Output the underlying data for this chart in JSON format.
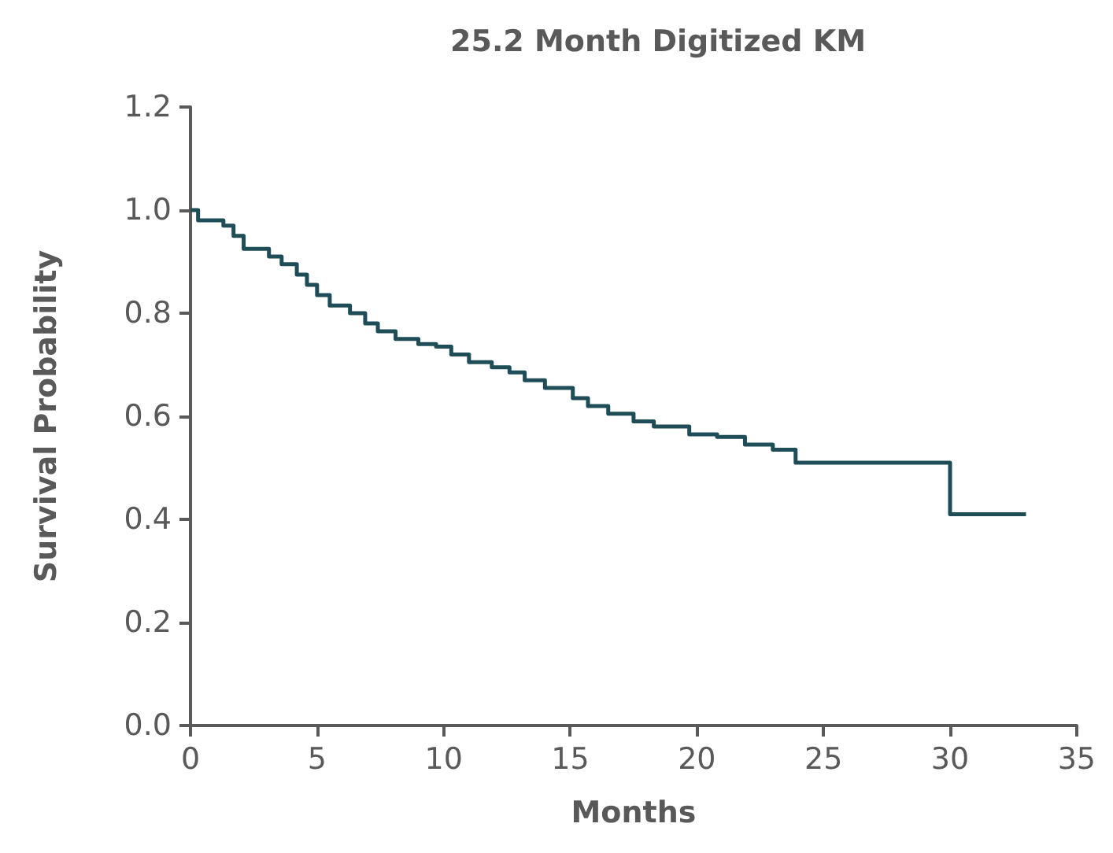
{
  "chart_data": {
    "type": "step",
    "title": "25.2 Month Digitized KM",
    "xlabel": "Months",
    "ylabel": "Survival Probability",
    "series": [
      {
        "color": "#1e4d58",
        "x": [
          0,
          0.3,
          1.3,
          1.7,
          2.1,
          3.1,
          3.6,
          4.2,
          4.6,
          5.0,
          5.5,
          6.3,
          6.9,
          7.4,
          8.1,
          9.0,
          9.7,
          10.3,
          11.0,
          11.9,
          12.6,
          13.2,
          14.0,
          15.1,
          15.7,
          16.5,
          17.5,
          18.3,
          19.7,
          20.8,
          21.9,
          23.0,
          23.9,
          30.0,
          33.0
        ],
        "values": [
          1.0,
          0.98,
          0.97,
          0.95,
          0.925,
          0.91,
          0.895,
          0.875,
          0.855,
          0.835,
          0.815,
          0.8,
          0.78,
          0.765,
          0.75,
          0.74,
          0.735,
          0.72,
          0.705,
          0.695,
          0.685,
          0.67,
          0.655,
          0.635,
          0.62,
          0.605,
          0.59,
          0.58,
          0.565,
          0.56,
          0.545,
          0.535,
          0.51,
          0.41,
          0.41
        ]
      }
    ],
    "xlim": [
      0,
      35
    ],
    "xticks": [
      0,
      5,
      10,
      15,
      20,
      25,
      30,
      35
    ],
    "ylim": [
      0,
      1.2
    ],
    "yticks": [
      {
        "value": 0,
        "label": "0.0"
      },
      0.2,
      0.4,
      0.6,
      0.8,
      {
        "value": 1,
        "label": "1.0"
      },
      1.2
    ],
    "grid": false,
    "marker": "none",
    "line_style": "solid"
  }
}
